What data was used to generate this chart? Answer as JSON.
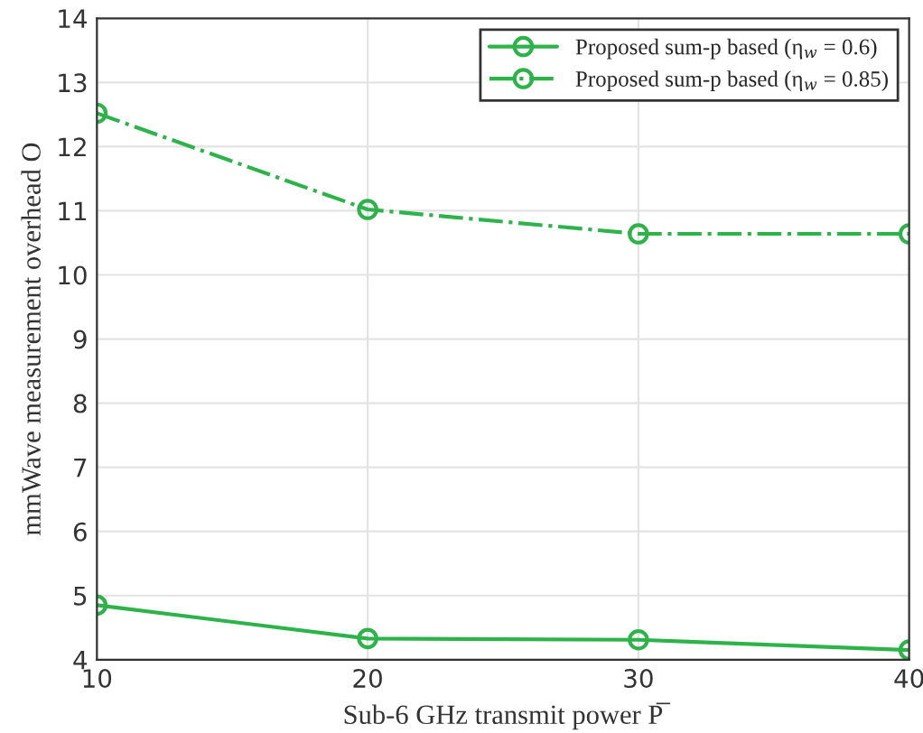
{
  "chart_data": {
    "type": "line",
    "xlabel": "Sub-6 GHz transmit power P̅",
    "ylabel": "mmWave measurement overhead O",
    "x": [
      10,
      20,
      30,
      40
    ],
    "series": [
      {
        "name": "Proposed sum-p based (η$_{w}$ = 0.6)",
        "color": "#2db34a",
        "values": [
          4.85,
          4.33,
          4.31,
          4.15
        ],
        "line_style": "solid"
      },
      {
        "name": "Proposed sum-p based (η$_{w}$ = 0.85)",
        "color": "#2db34a",
        "values": [
          12.52,
          11.02,
          10.64,
          10.64
        ],
        "line_style": "dashed"
      }
    ],
    "xlim": [
      10,
      40
    ],
    "xticks": [
      10,
      20,
      30,
      40
    ],
    "ylim": [
      4,
      14
    ],
    "yticks": [
      4,
      5,
      6,
      7,
      8,
      9,
      10,
      11,
      12,
      13,
      14
    ],
    "grid": true,
    "legend": "top right",
    "marker": "circle"
  }
}
